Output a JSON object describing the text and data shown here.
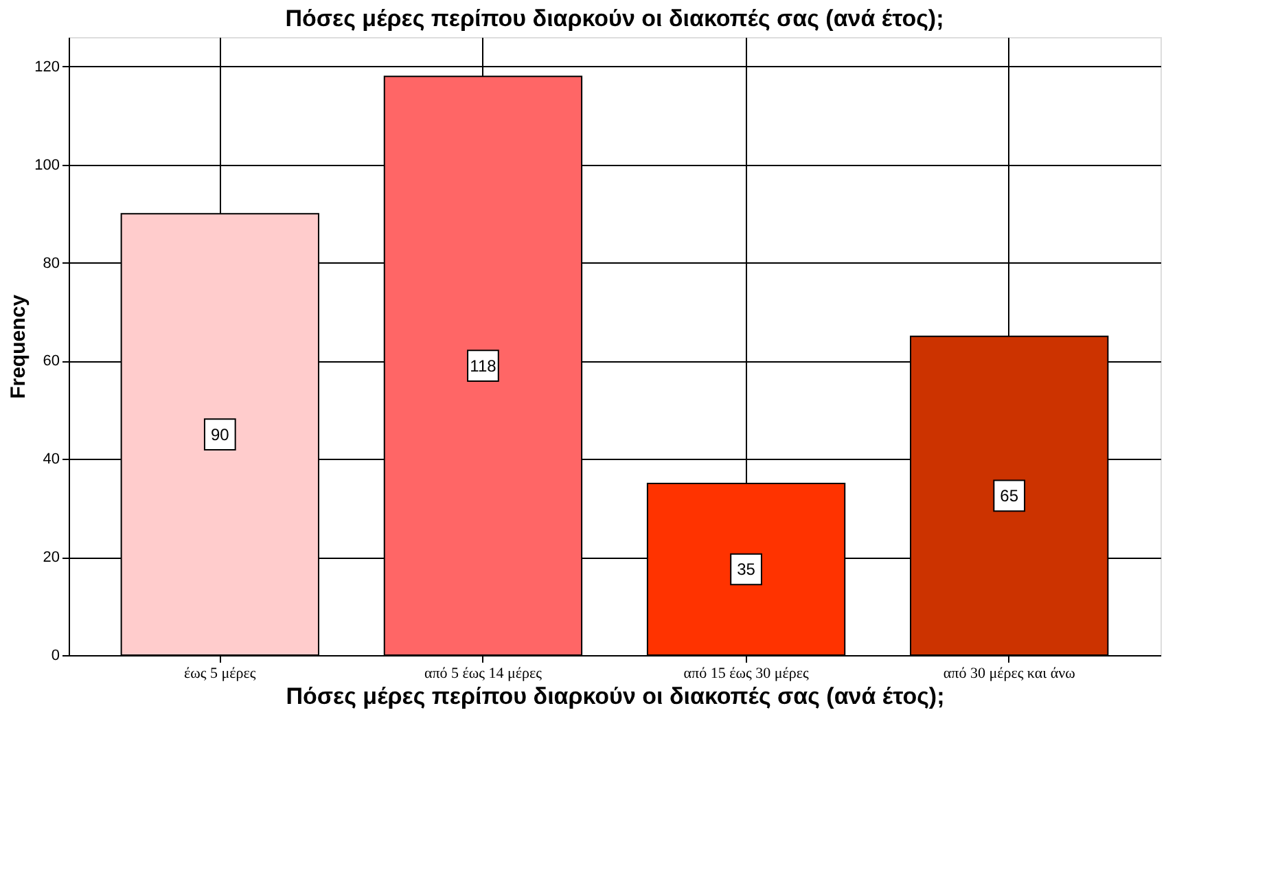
{
  "chart_data": {
    "type": "bar",
    "title": "Πόσες μέρες περίπου διαρκούν οι διακοπές σας (ανά έτος);",
    "xlabel": "Πόσες μέρες περίπου διαρκούν οι διακοπές σας (ανά έτος);",
    "ylabel": "Frequency",
    "categories": [
      "έως 5 μέρες",
      "από 5 έως 14 μέρες",
      "από 15 έως 30 μέρες",
      "από 30 μέρες και άνω"
    ],
    "values": [
      90,
      118,
      35,
      65
    ],
    "colors": [
      "#ffcccc",
      "#ff6666",
      "#ff3300",
      "#cc3300"
    ],
    "ylim": [
      0,
      126
    ],
    "yticks": [
      0,
      20,
      40,
      60,
      80,
      100,
      120
    ],
    "grid": true,
    "data_labels": true
  }
}
